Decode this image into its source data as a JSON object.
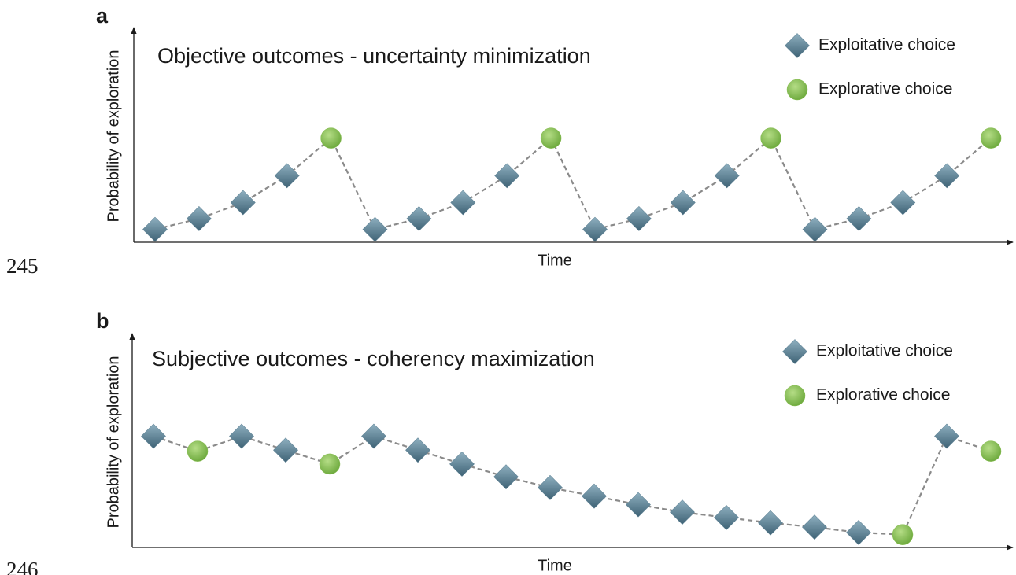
{
  "line_numbers": [
    "245",
    "246"
  ],
  "chart_data": [
    {
      "type": "line",
      "panel_label": "a",
      "title": "Objective outcomes - uncertainty minimization",
      "x_label": "Time",
      "y_label": "Probability of exploration",
      "categories": [
        null,
        null,
        null,
        null,
        null,
        null,
        null,
        null,
        null,
        null,
        null,
        null,
        null,
        null,
        null,
        null,
        null,
        null,
        null,
        null
      ],
      "ylim": [
        0,
        100
      ],
      "series": [
        {
          "name": "Exploitative choice",
          "color": "#5b7f92",
          "values": [
            6,
            11,
            18.5,
            31,
            null,
            6,
            11,
            18.5,
            31,
            null,
            6,
            11,
            18.5,
            31,
            null,
            6,
            11,
            18.5,
            31,
            null
          ]
        },
        {
          "name": "Explorative choice",
          "color": "#86bd4f",
          "values": [
            null,
            null,
            null,
            null,
            48.5,
            null,
            null,
            null,
            null,
            48.5,
            null,
            null,
            null,
            null,
            48.5,
            null,
            null,
            null,
            null,
            48.5
          ]
        }
      ]
    },
    {
      "type": "line",
      "panel_label": "b",
      "title": "Subjective outcomes - coherency maximization",
      "x_label": "Time",
      "y_label": "Probability of exploration",
      "categories": [
        null,
        null,
        null,
        null,
        null,
        null,
        null,
        null,
        null,
        null,
        null,
        null,
        null,
        null,
        null,
        null,
        null,
        null,
        null,
        null
      ],
      "ylim": [
        0,
        100
      ],
      "series": [
        {
          "name": "Exploitative choice",
          "color": "#5b7f92",
          "values": [
            52,
            null,
            52,
            45.5,
            null,
            52,
            45.5,
            39,
            33,
            28,
            24,
            20,
            16.5,
            14,
            11.5,
            9.5,
            7,
            null,
            52,
            null
          ]
        },
        {
          "name": "Explorative choice",
          "color": "#86bd4f",
          "values": [
            null,
            45,
            null,
            null,
            39,
            null,
            null,
            null,
            null,
            null,
            null,
            null,
            null,
            null,
            null,
            null,
            null,
            6,
            null,
            45
          ]
        }
      ]
    }
  ]
}
